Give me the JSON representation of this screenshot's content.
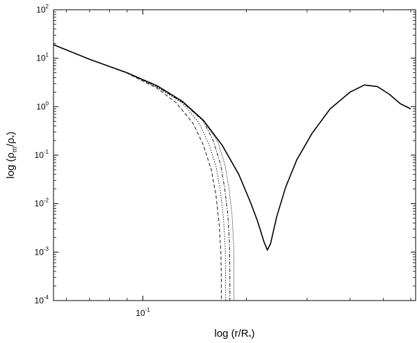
{
  "chart_data": {
    "type": "line",
    "title": "",
    "xlabel": {
      "prefix": "log (r/R",
      "sub": "*",
      "suffix": ")"
    },
    "ylabel": {
      "prefix": "log (ρ",
      "sub1": "m",
      "mid": "/ρ",
      "sub2": "*",
      "suffix": ")"
    },
    "xscale": "log",
    "yscale": "log",
    "xlim": [
      0.055,
      0.62
    ],
    "ylim": [
      0.0001,
      100
    ],
    "grid": false,
    "legend": "none",
    "x_ticks": [
      {
        "base": "10",
        "exp": "-1",
        "value": 0.1
      }
    ],
    "y_ticks": [
      {
        "base": "10",
        "exp": "2",
        "value": 100
      },
      {
        "base": "10",
        "exp": "1",
        "value": 10
      },
      {
        "base": "10",
        "exp": "0",
        "value": 1
      },
      {
        "base": "10",
        "exp": "-1",
        "value": 0.1
      },
      {
        "base": "10",
        "exp": "-2",
        "value": 0.01
      },
      {
        "base": "10",
        "exp": "-3",
        "value": 0.001
      },
      {
        "base": "10",
        "exp": "-4",
        "value": 0.0001
      }
    ],
    "series": [
      {
        "style": "solid",
        "color": "#000000",
        "x": [
          0.055,
          0.07,
          0.09,
          0.11,
          0.13,
          0.15,
          0.17,
          0.19,
          0.205,
          0.215,
          0.225,
          0.23,
          0.235,
          0.245,
          0.26,
          0.28,
          0.31,
          0.35,
          0.4,
          0.44,
          0.48,
          0.52,
          0.56,
          0.6
        ],
        "y": [
          19,
          9.5,
          5,
          2.7,
          1.3,
          0.52,
          0.16,
          0.04,
          0.011,
          0.0045,
          0.0016,
          0.0011,
          0.0015,
          0.0055,
          0.022,
          0.08,
          0.28,
          0.9,
          2.0,
          2.8,
          2.6,
          1.8,
          1.15,
          0.9
        ]
      },
      {
        "style": "dashed",
        "color": "#000000",
        "x": [
          0.055,
          0.07,
          0.09,
          0.11,
          0.125,
          0.14,
          0.15,
          0.158,
          0.163,
          0.1665,
          0.1685,
          0.169,
          0.169
        ],
        "y": [
          19,
          9.5,
          4.9,
          2.4,
          1.2,
          0.45,
          0.16,
          0.05,
          0.015,
          0.004,
          0.001,
          0.0003,
          0.0001
        ]
      },
      {
        "style": "dotted",
        "color": "#000000",
        "x": [
          0.055,
          0.07,
          0.09,
          0.11,
          0.13,
          0.145,
          0.155,
          0.163,
          0.168,
          0.1715,
          0.1735,
          0.174,
          0.174
        ],
        "y": [
          19,
          9.5,
          4.95,
          2.5,
          1.2,
          0.48,
          0.18,
          0.06,
          0.018,
          0.005,
          0.0012,
          0.0003,
          0.0001
        ]
      },
      {
        "style": "dashdot",
        "color": "#000000",
        "x": [
          0.055,
          0.07,
          0.09,
          0.11,
          0.13,
          0.15,
          0.16,
          0.168,
          0.173,
          0.1765,
          0.1785,
          0.179,
          0.179
        ],
        "y": [
          19,
          9.5,
          5,
          2.6,
          1.25,
          0.5,
          0.2,
          0.065,
          0.02,
          0.006,
          0.0015,
          0.0004,
          0.0001
        ]
      },
      {
        "style": "densedot",
        "color": "#000000",
        "x": [
          0.055,
          0.07,
          0.09,
          0.11,
          0.13,
          0.15,
          0.165,
          0.173,
          0.178,
          0.1815,
          0.1835,
          0.184,
          0.184
        ],
        "y": [
          19,
          9.5,
          5,
          2.65,
          1.28,
          0.51,
          0.19,
          0.065,
          0.02,
          0.006,
          0.0015,
          0.0004,
          0.0001
        ]
      }
    ]
  }
}
